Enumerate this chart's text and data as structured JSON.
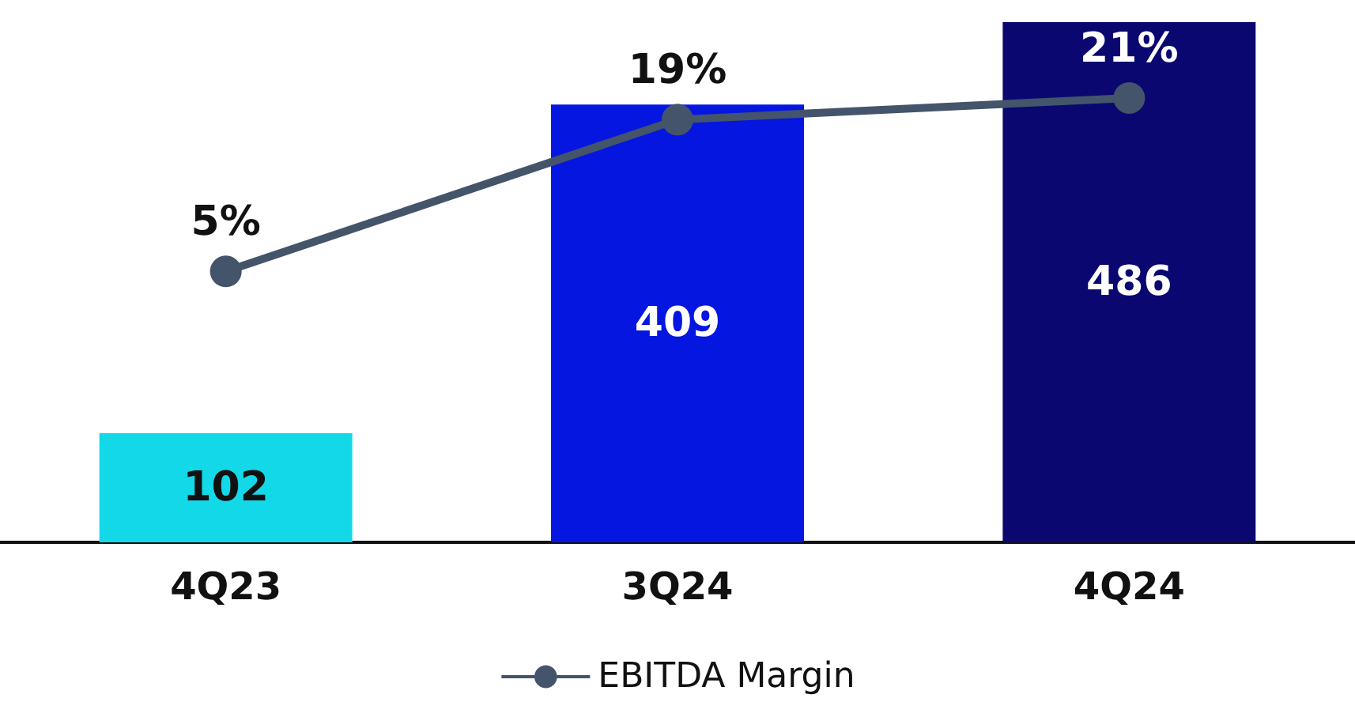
{
  "chart_data": {
    "type": "bar",
    "categories": [
      "4Q23",
      "3Q24",
      "4Q24"
    ],
    "series": [
      {
        "colors": [
          "#12d8e8",
          "#0516e0",
          "#0a0870"
        ],
        "values": [
          102,
          409,
          486
        ],
        "value_labels": [
          "102",
          "409",
          "486"
        ]
      },
      {
        "type": "line",
        "name": "EBITDA Margin",
        "color": "#44546a",
        "axis": "y2",
        "values": [
          5,
          19,
          21
        ],
        "value_labels": [
          "5%",
          "19%",
          "21%"
        ]
      }
    ],
    "ylim": [
      0,
      486
    ],
    "y2lim": [
      -20,
      28
    ],
    "tick_labels": "x",
    "legend": "bottom",
    "marker": "circle"
  }
}
